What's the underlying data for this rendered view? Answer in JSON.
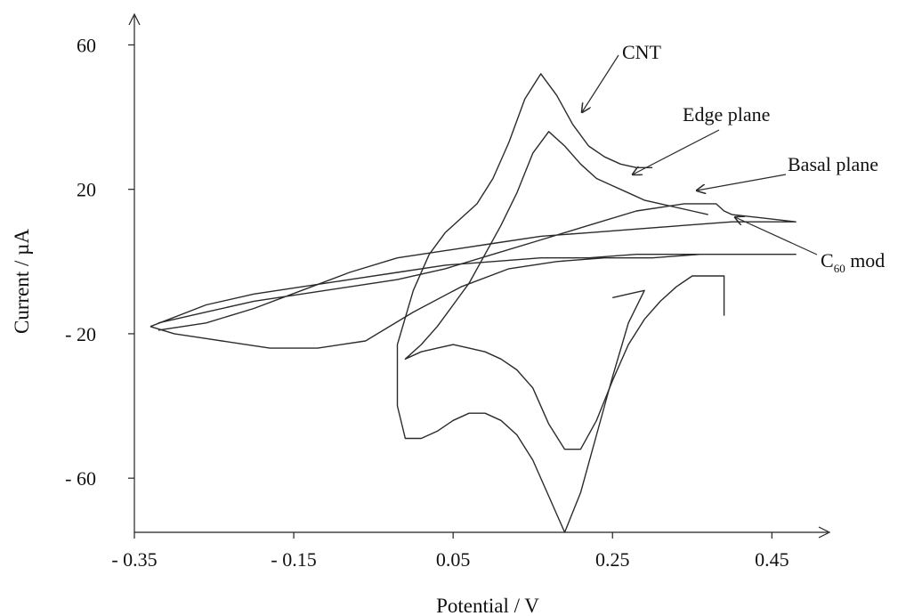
{
  "chart_data": {
    "type": "line",
    "title": "",
    "xlabel": "Potential / V",
    "ylabel": "Current / µA",
    "xlim": [
      -0.35,
      0.52
    ],
    "ylim": [
      -75,
      68
    ],
    "x_ticks": [
      -0.35,
      -0.15,
      0.05,
      0.25,
      0.45
    ],
    "x_tick_labels": [
      "- 0.35",
      "- 0.15",
      "0.05",
      "0.25",
      "0.45"
    ],
    "y_ticks": [
      -60,
      -20,
      20,
      60
    ],
    "y_tick_labels": [
      "- 60",
      "- 20",
      "20",
      "60"
    ],
    "grid": false,
    "legend": "none",
    "series": [
      {
        "name": "CNT",
        "x": [
          0.25,
          0.27,
          0.29,
          0.27,
          0.25,
          0.23,
          0.21,
          0.19,
          0.17,
          0.15,
          0.13,
          0.11,
          0.09,
          0.07,
          0.05,
          0.03,
          0.01,
          -0.01,
          -0.02,
          -0.02,
          0.0,
          0.02,
          0.04,
          0.06,
          0.08,
          0.1,
          0.12,
          0.14,
          0.16,
          0.18,
          0.2,
          0.22,
          0.24,
          0.26,
          0.28,
          0.3
        ],
        "y": [
          -10,
          -9,
          -8,
          -17,
          -32,
          -48,
          -64,
          -75,
          -65,
          -55,
          -48,
          -44,
          -42,
          -42,
          -44,
          -47,
          -49,
          -49,
          -40,
          -23,
          -8,
          2,
          8,
          12,
          16,
          23,
          33,
          45,
          52,
          46,
          38,
          32,
          29,
          27,
          26,
          26
        ]
      },
      {
        "name": "Edge plane",
        "x": [
          0.39,
          0.39,
          0.37,
          0.35,
          0.33,
          0.31,
          0.29,
          0.27,
          0.25,
          0.23,
          0.21,
          0.19,
          0.17,
          0.15,
          0.13,
          0.11,
          0.09,
          0.07,
          0.05,
          0.03,
          0.01,
          -0.01,
          0.01,
          0.03,
          0.05,
          0.07,
          0.09,
          0.11,
          0.13,
          0.15,
          0.17,
          0.19,
          0.21,
          0.23,
          0.25,
          0.27,
          0.29,
          0.31,
          0.33,
          0.35,
          0.37
        ],
        "y": [
          -15,
          -4,
          -4,
          -4,
          -7,
          -11,
          -16,
          -23,
          -33,
          -44,
          -52,
          -52,
          -45,
          -35,
          -30,
          -27,
          -25,
          -24,
          -23,
          -24,
          -25,
          -27,
          -23,
          -18,
          -12,
          -6,
          2,
          10,
          19,
          30,
          36,
          32,
          27,
          23,
          21,
          19,
          17,
          16,
          15,
          14,
          13
        ]
      },
      {
        "name": "Basal plane",
        "x": [
          -0.32,
          -0.26,
          -0.2,
          -0.14,
          -0.08,
          -0.02,
          0.04,
          0.1,
          0.16,
          0.22,
          0.28,
          0.34,
          0.38,
          0.39,
          0.4,
          0.44,
          0.48,
          0.44,
          0.4,
          0.34,
          0.28,
          0.22,
          0.16,
          0.1,
          0.04,
          -0.02,
          -0.08,
          -0.14,
          -0.2,
          -0.26,
          -0.32
        ],
        "y": [
          -17,
          -14,
          -11,
          -9,
          -7,
          -5,
          -2,
          2,
          6,
          10,
          14,
          16,
          16,
          14,
          13,
          12,
          11,
          11,
          11,
          10,
          9,
          8,
          7,
          5,
          3,
          1,
          -3,
          -8,
          -13,
          -17,
          -19
        ]
      },
      {
        "name": "C60 mod",
        "x": [
          -0.33,
          -0.26,
          -0.2,
          -0.14,
          -0.08,
          -0.02,
          0.04,
          0.1,
          0.16,
          0.22,
          0.28,
          0.34,
          0.4,
          0.48,
          0.48,
          0.42,
          0.36,
          0.3,
          0.24,
          0.18,
          0.12,
          0.06,
          0.0,
          -0.06,
          -0.12,
          -0.18,
          -0.24,
          -0.3,
          -0.33
        ],
        "y": [
          -18,
          -12,
          -9,
          -7,
          -5,
          -3,
          -1,
          0,
          1,
          1,
          2,
          2,
          2,
          2,
          2,
          2,
          2,
          1,
          1,
          0,
          -2,
          -7,
          -14,
          -22,
          -24,
          -24,
          -22,
          -20,
          -18
        ]
      }
    ],
    "annotations": [
      {
        "text": "CNT",
        "points_to": [
          0.2,
          46
        ]
      },
      {
        "text": "Edge plane",
        "points_to": [
          0.29,
          22
        ]
      },
      {
        "text": "Basal plane",
        "points_to": [
          0.38,
          16
        ]
      },
      {
        "text": "C",
        "subscript": "60",
        "suffix": " mod",
        "points_to": [
          0.41,
          10
        ]
      }
    ]
  }
}
